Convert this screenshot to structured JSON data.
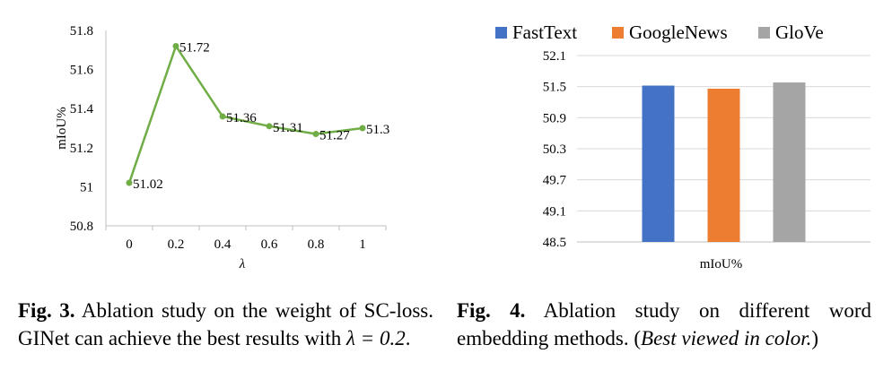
{
  "figures": [
    {
      "caption": {
        "label": "Fig. 3.",
        "text_a": "Ablation study on the weight of SC-loss. GINet can achieve the best results with ",
        "math": "λ = 0.2",
        "text_b": "."
      },
      "chart_data": {
        "type": "line",
        "title": "",
        "xlabel": "λ",
        "ylabel": "mIoU%",
        "x": [
          0,
          0.2,
          0.4,
          0.6,
          0.8,
          1
        ],
        "x_tick_labels": [
          "0",
          "0.2",
          "0.4",
          "0.6",
          "0.8",
          "1"
        ],
        "series": [
          {
            "values": [
              51.02,
              51.72,
              51.36,
              51.31,
              51.27,
              51.3
            ],
            "point_labels": [
              "51.02",
              "51.72",
              "51.36",
              "51.31",
              "51.27",
              "51.3"
            ],
            "color": "#70ad47"
          }
        ],
        "ylim": [
          50.8,
          51.8
        ],
        "y_ticks": [
          50.8,
          51,
          51.2,
          51.4,
          51.6,
          51.8
        ],
        "y_tick_labels": [
          "50.8",
          "51",
          "51.2",
          "51.4",
          "51.6",
          "51.8"
        ],
        "grid": false
      }
    },
    {
      "caption": {
        "label": "Fig. 4.",
        "text_a": "Ablation study on different word embedding methods. (",
        "italic": "Best viewed in color.",
        "text_b": ")"
      },
      "chart_data": {
        "type": "bar",
        "title": "",
        "xlabel": "mIoU%",
        "ylabel": "",
        "categories": [
          "mIoU%"
        ],
        "series": [
          {
            "name": "FastText",
            "values": [
              51.52
            ],
            "color": "#4472c4"
          },
          {
            "name": "GoogleNews",
            "values": [
              51.46
            ],
            "color": "#ed7d31"
          },
          {
            "name": "GloVe",
            "values": [
              51.58
            ],
            "color": "#a5a5a5"
          }
        ],
        "ylim": [
          48.5,
          52.1
        ],
        "y_ticks": [
          48.5,
          49.1,
          49.7,
          50.3,
          50.9,
          51.5,
          52.1
        ],
        "y_tick_labels": [
          "48.5",
          "49.1",
          "49.7",
          "50.3",
          "50.9",
          "51.5",
          "52.1"
        ],
        "legend": "top",
        "grid": true
      }
    }
  ]
}
